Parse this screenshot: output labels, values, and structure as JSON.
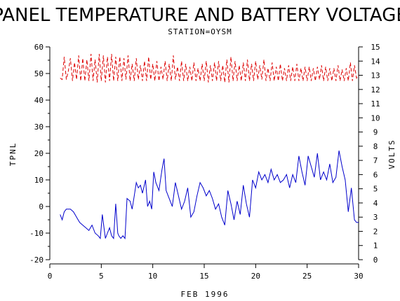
{
  "chart_data": {
    "type": "line",
    "title": "PANEL TEMPERATURE AND BATTERY VOLTAGE",
    "subtitle": "STATION=OYSM",
    "xlabel": "FEB 1996",
    "ylabel_left": "TPNL",
    "ylabel_right": "VOLTS",
    "xlim": [
      0,
      30
    ],
    "ylim_left": [
      -20,
      60
    ],
    "ylim_right": [
      0,
      15
    ],
    "x_ticks": [
      0,
      5,
      10,
      15,
      20,
      25,
      30
    ],
    "y_left_ticks": [
      -20,
      -10,
      0,
      10,
      20,
      30,
      40,
      50,
      60
    ],
    "y_right_ticks": [
      0,
      1,
      2,
      3,
      4,
      5,
      6,
      7,
      8,
      9,
      10,
      11,
      12,
      13,
      14,
      15
    ],
    "grid": false,
    "series": [
      {
        "axis": "left",
        "color": "#0000cc",
        "style": "solid",
        "x": [
          1.0,
          1.2,
          1.4,
          1.6,
          1.8,
          2.0,
          2.3,
          2.6,
          2.9,
          3.2,
          3.5,
          3.8,
          4.1,
          4.4,
          4.7,
          4.9,
          5.1,
          5.3,
          5.4,
          5.6,
          5.8,
          6.0,
          6.2,
          6.4,
          6.6,
          6.7,
          6.9,
          7.1,
          7.3,
          7.5,
          7.8,
          8.0,
          8.2,
          8.4,
          8.6,
          8.8,
          9.0,
          9.3,
          9.5,
          9.7,
          9.9,
          10.1,
          10.3,
          10.6,
          10.9,
          11.1,
          11.3,
          11.6,
          11.9,
          12.2,
          12.5,
          12.8,
          13.1,
          13.4,
          13.7,
          14.0,
          14.3,
          14.6,
          14.9,
          15.2,
          15.5,
          15.8,
          16.1,
          16.4,
          16.7,
          17.0,
          17.3,
          17.6,
          17.9,
          18.2,
          18.5,
          18.8,
          19.1,
          19.4,
          19.7,
          20.0,
          20.3,
          20.6,
          20.9,
          21.2,
          21.5,
          21.8,
          22.1,
          22.4,
          22.7,
          23.0,
          23.3,
          23.6,
          23.9,
          24.2,
          24.5,
          24.8,
          25.1,
          25.4,
          25.7,
          26.0,
          26.3,
          26.6,
          26.9,
          27.2,
          27.5,
          27.8,
          28.1,
          28.4,
          28.7,
          29.0,
          29.3,
          29.6,
          29.8,
          30.0
        ],
        "values": [
          -3,
          -5,
          -2,
          -1,
          -1,
          -1,
          -2,
          -4,
          -6,
          -7,
          -8,
          -9,
          -7,
          -10,
          -11,
          -12,
          -3,
          -9,
          -12,
          -10,
          -8,
          -11,
          -12,
          1,
          -10,
          -11,
          -12,
          -11,
          -12,
          3,
          2,
          -1,
          4,
          9,
          7,
          8,
          5,
          10,
          0,
          2,
          -1,
          13,
          9,
          6,
          14,
          18,
          6,
          3,
          0,
          9,
          4,
          -1,
          2,
          7,
          -4,
          -2,
          4,
          9,
          7,
          4,
          6,
          3,
          -1,
          1,
          -4,
          -7,
          6,
          1,
          -5,
          2,
          -3,
          8,
          1,
          -4,
          10,
          7,
          13,
          10,
          12,
          9,
          14,
          10,
          12,
          9,
          10,
          12,
          7,
          12,
          9,
          19,
          13,
          8,
          19,
          15,
          11,
          20,
          10,
          13,
          10,
          16,
          9,
          11,
          21,
          15,
          10,
          -2,
          7,
          -5,
          -6,
          -6
        ]
      },
      {
        "axis": "right",
        "color": "#dd0000",
        "style": "dashed",
        "x": [
          1.0,
          1.2,
          1.4,
          1.6,
          1.8,
          2.0,
          2.2,
          2.4,
          2.6,
          2.8,
          3.0,
          3.2,
          3.4,
          3.6,
          3.8,
          4.0,
          4.2,
          4.4,
          4.6,
          4.8,
          5.0,
          5.2,
          5.4,
          5.6,
          5.8,
          6.0,
          6.2,
          6.4,
          6.6,
          6.8,
          7.0,
          7.2,
          7.4,
          7.6,
          7.8,
          8.0,
          8.2,
          8.4,
          8.6,
          8.8,
          9.0,
          9.2,
          9.4,
          9.6,
          9.8,
          10.0,
          10.2,
          10.4,
          10.6,
          10.8,
          11.0,
          11.2,
          11.4,
          11.6,
          11.8,
          12.0,
          12.2,
          12.4,
          12.6,
          12.8,
          13.0,
          13.2,
          13.4,
          13.6,
          13.8,
          14.0,
          14.2,
          14.4,
          14.6,
          14.8,
          15.0,
          15.2,
          15.4,
          15.6,
          15.8,
          16.0,
          16.2,
          16.4,
          16.6,
          16.8,
          17.0,
          17.2,
          17.4,
          17.6,
          17.8,
          18.0,
          18.2,
          18.4,
          18.6,
          18.8,
          19.0,
          19.2,
          19.4,
          19.6,
          19.8,
          20.0,
          20.2,
          20.4,
          20.6,
          20.8,
          21.0,
          21.2,
          21.4,
          21.6,
          21.8,
          22.0,
          22.2,
          22.4,
          22.6,
          22.8,
          23.0,
          23.2,
          23.4,
          23.6,
          23.8,
          24.0,
          24.2,
          24.4,
          24.6,
          24.8,
          25.0,
          25.2,
          25.4,
          25.6,
          25.8,
          26.0,
          26.2,
          26.4,
          26.6,
          26.8,
          27.0,
          27.2,
          27.4,
          27.6,
          27.8,
          28.0,
          28.2,
          28.4,
          28.6,
          28.8,
          29.0,
          29.2,
          29.4,
          29.6,
          29.8,
          30.0
        ],
        "values": [
          12.8,
          12.7,
          14.3,
          12.7,
          13.3,
          14.2,
          12.6,
          13.9,
          12.7,
          14.4,
          12.6,
          14.2,
          12.6,
          14.1,
          12.6,
          14.5,
          12.6,
          14.1,
          12.5,
          14.5,
          12.6,
          14.4,
          12.5,
          14.3,
          12.6,
          14.5,
          12.6,
          14.3,
          12.6,
          14.3,
          12.6,
          14.2,
          12.7,
          14.4,
          12.6,
          13.8,
          12.6,
          14.2,
          12.7,
          13.7,
          12.6,
          14.0,
          12.6,
          14.3,
          12.7,
          13.8,
          12.6,
          14.0,
          12.6,
          13.6,
          12.7,
          14.0,
          12.6,
          13.8,
          12.6,
          14.4,
          12.7,
          13.6,
          12.6,
          14.0,
          12.6,
          13.8,
          12.6,
          13.6,
          12.6,
          13.9,
          12.6,
          13.5,
          12.6,
          13.8,
          12.6,
          14.0,
          12.5,
          13.7,
          12.6,
          13.9,
          12.6,
          14.0,
          12.6,
          13.7,
          12.5,
          14.1,
          12.5,
          14.3,
          12.6,
          14.0,
          12.6,
          13.7,
          12.6,
          13.9,
          12.6,
          14.1,
          12.6,
          13.8,
          12.6,
          14.0,
          12.7,
          13.7,
          12.7,
          14.1,
          12.6,
          13.5,
          12.6,
          13.9,
          12.6,
          13.6,
          12.6,
          13.8,
          12.6,
          13.5,
          12.6,
          13.7,
          12.6,
          13.6,
          12.6,
          13.8,
          12.6,
          13.5,
          12.6,
          13.6,
          12.6,
          13.6,
          12.6,
          13.5,
          12.6,
          13.6,
          12.7,
          13.7,
          12.6,
          13.6,
          12.6,
          13.5,
          12.6,
          13.5,
          12.6,
          13.7,
          12.6,
          13.4,
          12.6,
          13.5,
          12.6,
          13.9,
          12.6,
          13.7,
          12.8,
          13.0
        ]
      }
    ]
  }
}
